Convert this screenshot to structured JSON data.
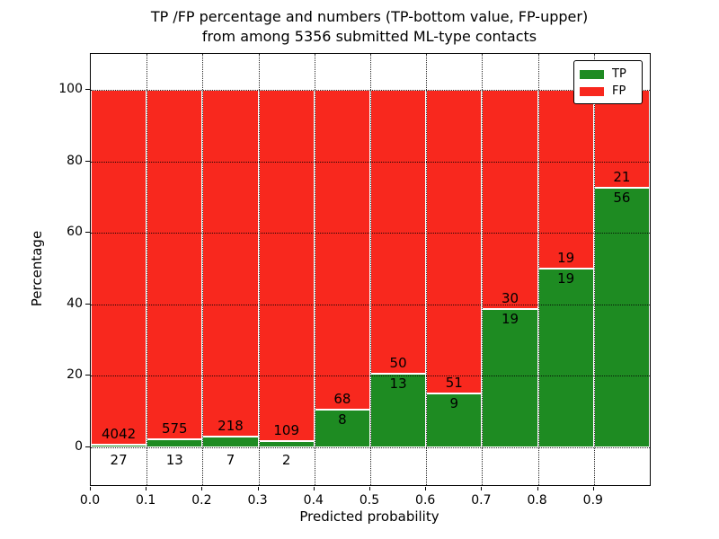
{
  "title": {
    "line1": "TP /FP percentage and numbers (TP-bottom value, FP-upper)",
    "line2": "from among 5356 submitted ML-type contacts"
  },
  "axes": {
    "x_label": "Predicted probability",
    "y_label": "Percentage"
  },
  "legend": {
    "items": [
      {
        "label": "TP",
        "color": "#1e8b22"
      },
      {
        "label": "FP",
        "color": "#f8281e"
      }
    ]
  },
  "chart_data": {
    "type": "bar",
    "stacked": true,
    "normalized": "each bar totals 100%",
    "title": "TP /FP percentage and numbers (TP-bottom value, FP-upper) from among 5356 submitted ML-type contacts",
    "xlabel": "Predicted probability",
    "ylabel": "Percentage",
    "total_contacts": 5356,
    "x_bins": [
      0.0,
      0.1,
      0.2,
      0.3,
      0.4,
      0.5,
      0.6,
      0.7,
      0.8,
      0.9
    ],
    "bin_width": 0.1,
    "xtick_labels": [
      "0.0",
      "0.1",
      "0.2",
      "0.3",
      "0.4",
      "0.5",
      "0.6",
      "0.7",
      "0.8",
      "0.9"
    ],
    "yticks": [
      0,
      20,
      40,
      60,
      80,
      100
    ],
    "xlim": [
      0.0,
      1.0
    ],
    "ylim": [
      -10.6,
      110.1
    ],
    "grid": "dotted",
    "legend_position": "upper right",
    "series": [
      {
        "name": "TP",
        "color": "#1e8b22",
        "stack_position": "bottom",
        "counts": [
          27,
          13,
          7,
          2,
          8,
          13,
          9,
          19,
          19,
          56
        ]
      },
      {
        "name": "FP",
        "color": "#f8281e",
        "stack_position": "top",
        "counts": [
          4042,
          575,
          218,
          109,
          68,
          50,
          51,
          30,
          19,
          21
        ]
      }
    ],
    "tp_percent_est": [
      0.7,
      2.2,
      3.1,
      1.8,
      10.5,
      20.6,
      15.0,
      38.8,
      50.0,
      72.7
    ]
  }
}
